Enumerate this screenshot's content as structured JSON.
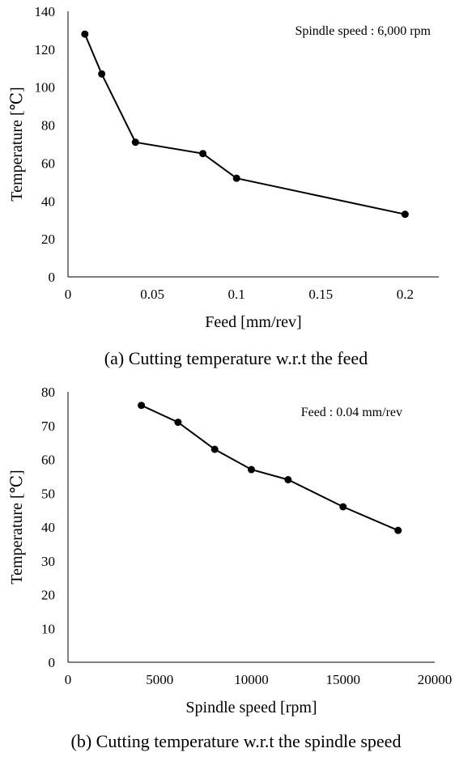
{
  "chart_data": [
    {
      "type": "line",
      "caption": "(a) Cutting temperature w.r.t the feed",
      "annotation": "Spindle speed : 6,000 rpm",
      "xlabel": "Feed [mm/rev]",
      "ylabel": "Temperature [℃]",
      "xlim": [
        0,
        0.22
      ],
      "ylim": [
        0,
        140
      ],
      "xticks": [
        0,
        0.05,
        0.1,
        0.15,
        0.2
      ],
      "xtick_labels": [
        "0",
        "0.05",
        "0.1",
        "0.15",
        "0.2"
      ],
      "yticks": [
        0,
        20,
        40,
        60,
        80,
        100,
        120,
        140
      ],
      "ytick_labels": [
        "0",
        "20",
        "40",
        "60",
        "80",
        "100",
        "120",
        "140"
      ],
      "grid": false,
      "series": [
        {
          "x": [
            0.01,
            0.02,
            0.04,
            0.08,
            0.1,
            0.2
          ],
          "values": [
            128,
            107,
            71,
            65,
            52,
            33
          ]
        }
      ],
      "marker_color": "#000000"
    },
    {
      "type": "line",
      "caption": "(b) Cutting temperature w.r.t the spindle speed",
      "annotation": "Feed : 0.04 mm/rev",
      "xlabel": "Spindle speed [rpm]",
      "ylabel": "Temperature [℃]",
      "xlim": [
        0,
        20000
      ],
      "ylim": [
        0,
        80
      ],
      "xticks": [
        0,
        5000,
        10000,
        15000,
        20000
      ],
      "xtick_labels": [
        "0",
        "5000",
        "10000",
        "15000",
        "20000"
      ],
      "yticks": [
        0,
        10,
        20,
        30,
        40,
        50,
        60,
        70,
        80
      ],
      "ytick_labels": [
        "0",
        "10",
        "20",
        "30",
        "40",
        "50",
        "60",
        "70",
        "80"
      ],
      "grid": false,
      "series": [
        {
          "x": [
            4000,
            6000,
            8000,
            10000,
            12000,
            15000,
            18000
          ],
          "values": [
            76,
            71,
            63,
            57,
            54,
            46,
            39
          ]
        }
      ],
      "marker_color": "#000000"
    }
  ]
}
